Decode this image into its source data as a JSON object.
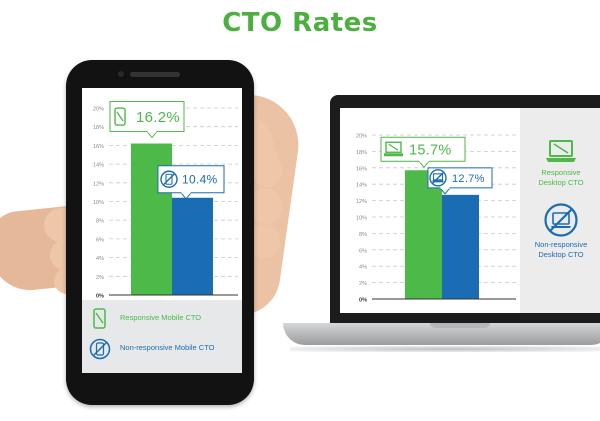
{
  "title": "CTO Rates",
  "colors": {
    "responsive": "#4cb948",
    "nonresponsive": "#1b6db3",
    "title": "#4caf3f"
  },
  "legend": {
    "responsive_mobile": "Responsive Mobile CTO",
    "nonresponsive_mobile": "Non-responsive Mobile CTO",
    "responsive_desktop": [
      "Responsive",
      "Desktop CTO"
    ],
    "nonresponsive_desktop": [
      "Non-responsive",
      "Desktop CTO"
    ]
  },
  "icons": {
    "responsive_mobile": "phone-icon",
    "nonresponsive_mobile": "crossed-phone-icon",
    "responsive_desktop": "laptop-icon",
    "nonresponsive_desktop": "crossed-laptop-icon"
  },
  "chart_data": [
    {
      "type": "bar",
      "categories": [
        "Responsive Mobile CTO",
        "Non-responsive Mobile CTO"
      ],
      "values": [
        16.2,
        10.4
      ],
      "labels": [
        "16.2%",
        "10.4%"
      ],
      "ylim": [
        0,
        20
      ],
      "yticks": [
        "0%",
        "2%",
        "4%",
        "6%",
        "8%",
        "10%",
        "12%",
        "14%",
        "16%",
        "18%",
        "20%"
      ],
      "grid": true
    },
    {
      "type": "bar",
      "categories": [
        "Responsive Desktop CTO",
        "Non-responsive Desktop CTO"
      ],
      "values": [
        15.7,
        12.7
      ],
      "labels": [
        "15.7%",
        "12.7%"
      ],
      "ylim": [
        0,
        20
      ],
      "yticks": [
        "0%",
        "2%",
        "4%",
        "6%",
        "8%",
        "10%",
        "12%",
        "14%",
        "16%",
        "18%",
        "20%"
      ],
      "grid": true
    }
  ]
}
